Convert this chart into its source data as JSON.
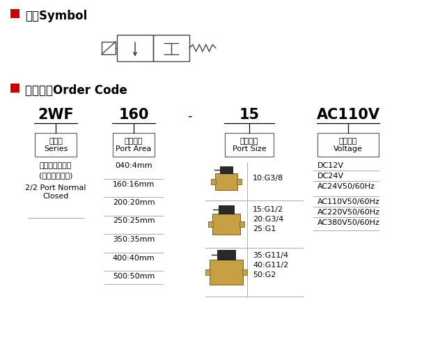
{
  "title_symbol": "符号Symbol",
  "title_order": "订货型号Order Code",
  "red_square_color": "#cc0000",
  "bg_color": "#ffffff",
  "text_color": "#000000",
  "col1_header": "2WF",
  "col2_header": "160",
  "col3_header": "-",
  "col4_header": "15",
  "col5_header": "AC110V",
  "col1_box_line1": "系列号",
  "col1_box_line2": "Series",
  "col2_box_line1": "流量孔径",
  "col2_box_line2": "Port Area",
  "col4_box_line1": "接管口径",
  "col4_box_line2": "Port Size",
  "col5_box_line1": "标准电压",
  "col5_box_line2": "Voltage",
  "col1_items": [
    "二口二位电磁阀",
    "(防爆型常闭式)",
    "2/2 Port Normal",
    "Closed"
  ],
  "col2_items": [
    "040:4mm",
    "160:16mm",
    "200:20mm",
    "250:25mm",
    "350:35mm",
    "400:40mm",
    "500:50mm"
  ],
  "col4_items": [
    "10:G3/8",
    "15:G1/2",
    "20:G3/4",
    "25:G1",
    "35:G11/4",
    "40:G11/2",
    "50:G2"
  ],
  "col5_items": [
    "DC12V",
    "DC24V",
    "AC24V50/60Hz",
    "AC110V50/60Hz",
    "AC220V50/60Hz",
    "AC380V50/60Hz"
  ],
  "line_color": "#aaaaaa",
  "box_line_color": "#666666",
  "figw": 6.09,
  "figh": 4.87,
  "dpi": 100
}
